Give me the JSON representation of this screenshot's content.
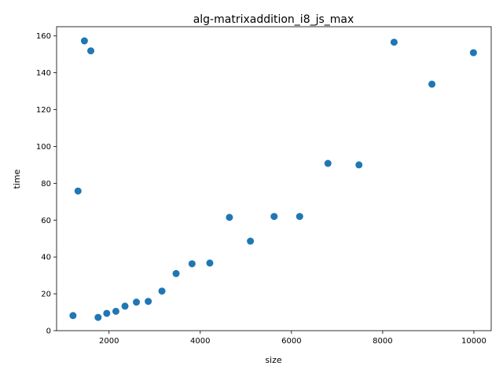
{
  "chart_data": {
    "type": "scatter",
    "title": "alg-matrixaddition_i8_js_max",
    "xlabel": "size",
    "ylabel": "time",
    "xlim": [
      850,
      10380
    ],
    "ylim": [
      0,
      165
    ],
    "xticks": [
      2000,
      4000,
      6000,
      8000,
      10000
    ],
    "yticks": [
      0,
      20,
      40,
      60,
      80,
      100,
      120,
      140,
      160
    ],
    "grid": false,
    "marker_color": "#1f77b4",
    "points": [
      {
        "x": 1210,
        "y": 8.2
      },
      {
        "x": 1320,
        "y": 75.8
      },
      {
        "x": 1460,
        "y": 157.3
      },
      {
        "x": 1600,
        "y": 151.9
      },
      {
        "x": 1760,
        "y": 7.2
      },
      {
        "x": 1950,
        "y": 9.4
      },
      {
        "x": 2150,
        "y": 10.5
      },
      {
        "x": 2350,
        "y": 13.3
      },
      {
        "x": 2600,
        "y": 15.5
      },
      {
        "x": 2860,
        "y": 15.9
      },
      {
        "x": 3160,
        "y": 21.5
      },
      {
        "x": 3470,
        "y": 31.0
      },
      {
        "x": 3820,
        "y": 36.3
      },
      {
        "x": 4210,
        "y": 36.7
      },
      {
        "x": 4640,
        "y": 61.5
      },
      {
        "x": 5100,
        "y": 48.6
      },
      {
        "x": 5620,
        "y": 62.0
      },
      {
        "x": 6180,
        "y": 62.0
      },
      {
        "x": 6800,
        "y": 90.8
      },
      {
        "x": 7480,
        "y": 90.0
      },
      {
        "x": 8250,
        "y": 156.6
      },
      {
        "x": 9080,
        "y": 133.8
      },
      {
        "x": 9990,
        "y": 150.9
      }
    ]
  }
}
